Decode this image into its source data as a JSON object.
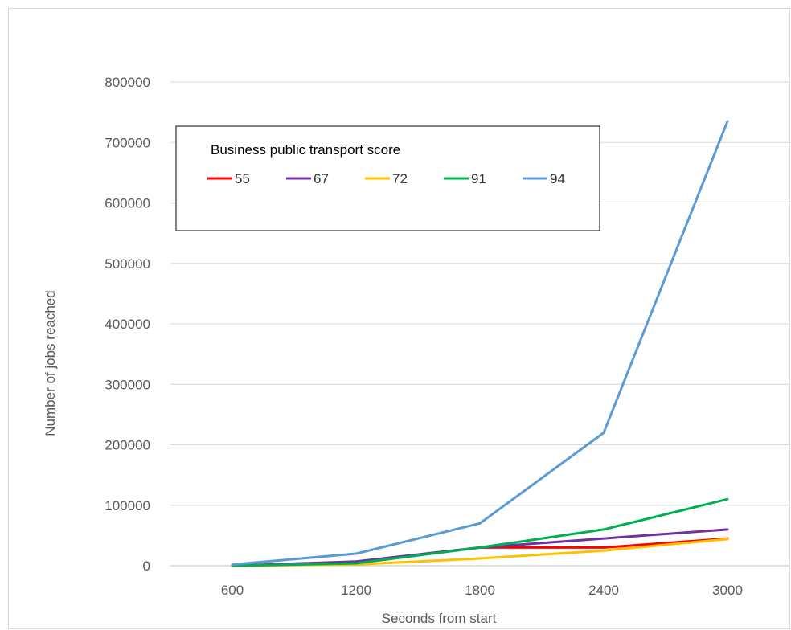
{
  "chart_data": {
    "type": "line",
    "title": "",
    "xlabel": "Seconds from start",
    "ylabel": "Number of jobs reached",
    "x": [
      "600",
      "1200",
      "1800",
      "2400",
      "3000"
    ],
    "ylim": [
      0,
      800000
    ],
    "yticks": [
      "0",
      "100000",
      "200000",
      "300000",
      "400000",
      "500000",
      "600000",
      "700000",
      "800000"
    ],
    "grid": true,
    "legend_title": "Business public transport score",
    "legend_position": "top-left-inside",
    "series": [
      {
        "name": "55",
        "color": "#ff0000",
        "values": [
          0,
          5000,
          30000,
          30000,
          45000
        ]
      },
      {
        "name": "67",
        "color": "#7030a0",
        "values": [
          0,
          7000,
          30000,
          45000,
          60000
        ]
      },
      {
        "name": "72",
        "color": "#ffc000",
        "values": [
          0,
          2000,
          12000,
          25000,
          44000
        ]
      },
      {
        "name": "91",
        "color": "#00b050",
        "values": [
          0,
          4000,
          30000,
          60000,
          110000
        ]
      },
      {
        "name": "94",
        "color": "#5b9bd5",
        "values": [
          2000,
          20000,
          70000,
          220000,
          735000
        ]
      }
    ]
  }
}
